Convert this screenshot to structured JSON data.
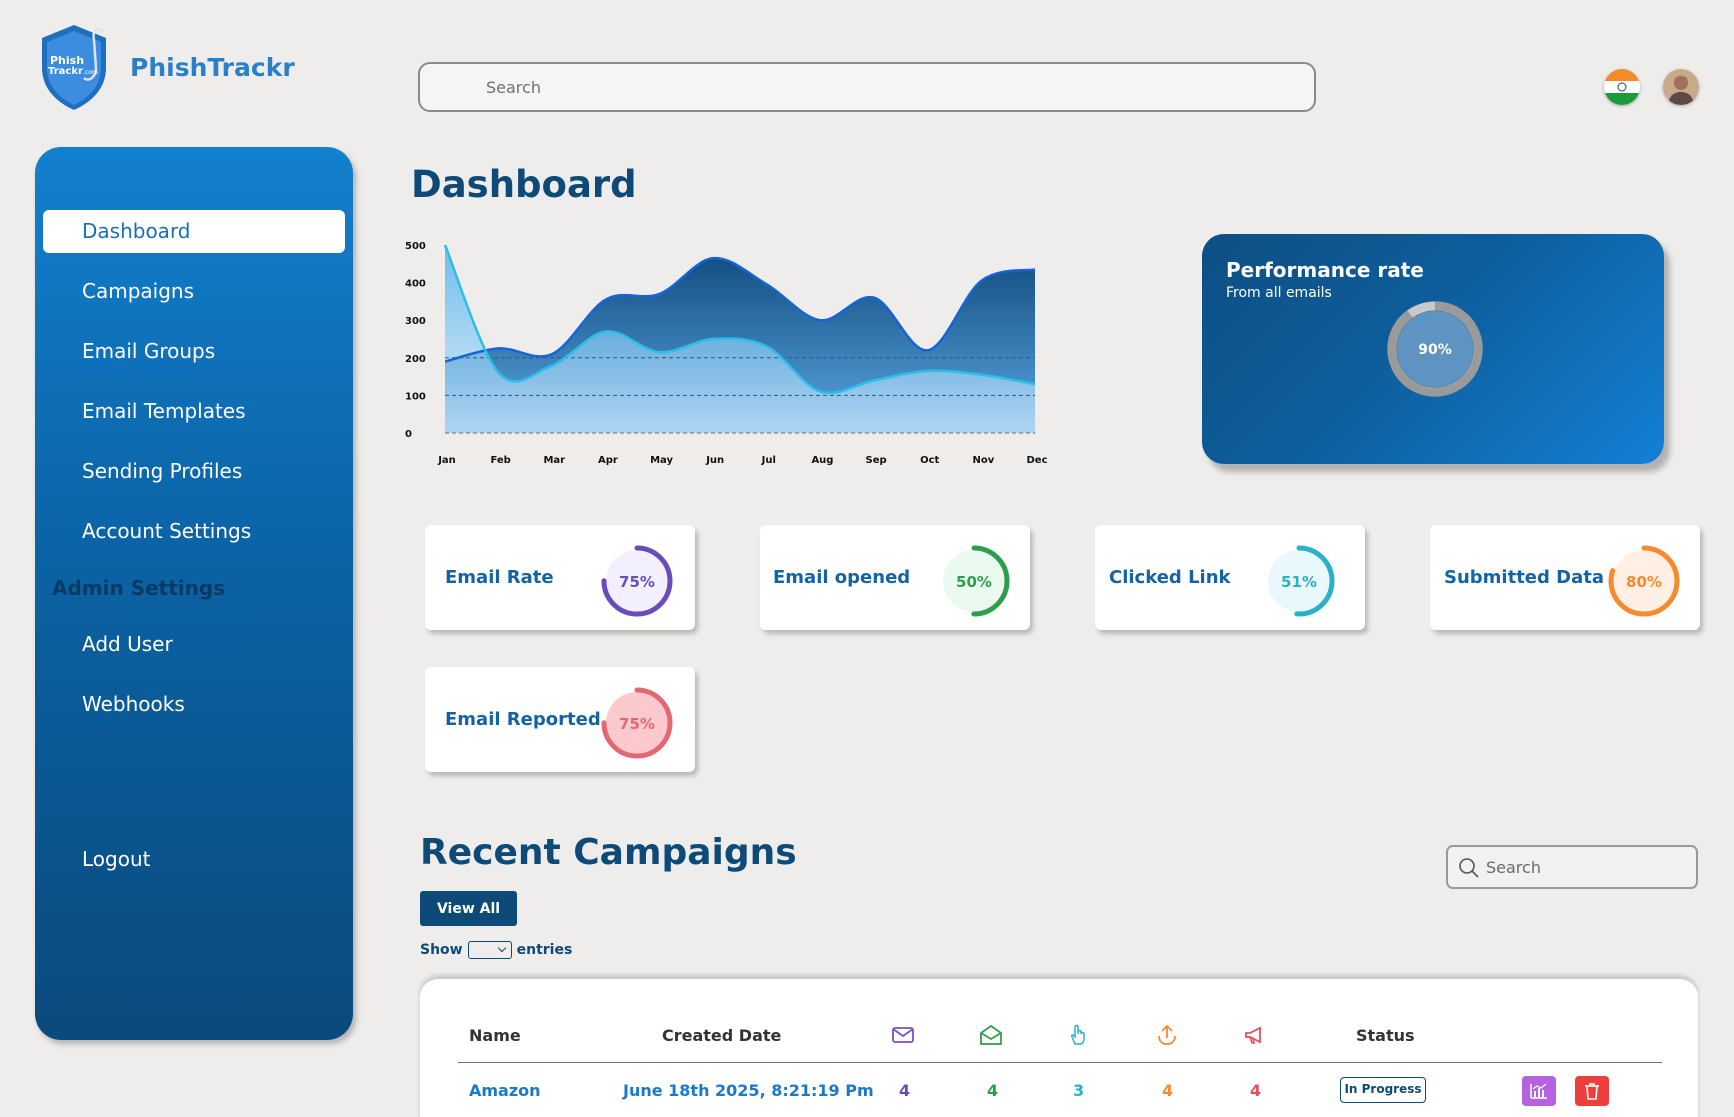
{
  "brand": {
    "name": "PhishTrackr",
    "logo_text_line1": "Phish",
    "logo_text_line2": "Trackr",
    "logo_suffix": ".com"
  },
  "header": {
    "search_placeholder": "Search",
    "flag_icon": "india-flag-icon",
    "avatar_icon": "user-avatar"
  },
  "sidebar": {
    "items": [
      {
        "label": "Dashboard",
        "active": true
      },
      {
        "label": "Campaigns"
      },
      {
        "label": "Email Groups"
      },
      {
        "label": "Email Templates"
      },
      {
        "label": "Sending Profiles"
      },
      {
        "label": "Account Settings"
      }
    ],
    "admin_heading": "Admin Settings",
    "admin_items": [
      {
        "label": "Add User"
      },
      {
        "label": "Webhooks"
      }
    ],
    "logout_label": "Logout"
  },
  "page": {
    "title": "Dashboard"
  },
  "chart_data": {
    "type": "area",
    "categories": [
      "Jan",
      "Feb",
      "Mar",
      "Apr",
      "May",
      "Jun",
      "Jul",
      "Aug",
      "Sep",
      "Oct",
      "Nov",
      "Dec"
    ],
    "yticks": [
      "0",
      "100",
      "200",
      "300",
      "400",
      "500"
    ],
    "ylim": [
      0,
      500
    ],
    "series": [
      {
        "values": [
          190,
          225,
          210,
          355,
          370,
          465,
          395,
          300,
          360,
          220,
          405,
          435
        ],
        "color": "#1565d8"
      },
      {
        "values": [
          500,
          160,
          180,
          270,
          215,
          250,
          230,
          110,
          140,
          165,
          155,
          130
        ],
        "color": "#2bbfe8"
      }
    ],
    "grid": "dashed at 100 and 200"
  },
  "performance": {
    "title": "Performance rate",
    "subtitle": "From all emails",
    "value": 90,
    "value_label": "90%"
  },
  "stats": [
    {
      "label": "Email Rate",
      "value": 75,
      "value_label": "75%",
      "color": "#6a4cb8",
      "bg": "#f3efff"
    },
    {
      "label": "Email opened",
      "value": 50,
      "value_label": "50%",
      "color": "#2e9e4a",
      "bg": "#eafaf0"
    },
    {
      "label": "Clicked Link",
      "value": 51,
      "value_label": "51%",
      "color": "#2bb0c9",
      "bg": "#e8f8fb"
    },
    {
      "label": "Submitted Data",
      "value": 80,
      "value_label": "80%",
      "color": "#f7892f",
      "bg": "#fff0e3"
    },
    {
      "label": "Email Reported",
      "value": 75,
      "value_label": "75%",
      "color": "#e36873",
      "bg": "#fcc9cd"
    }
  ],
  "recent": {
    "title": "Recent Campaigns",
    "view_all_label": "View All",
    "show_label": "Show",
    "entries_label": "entries",
    "search_placeholder": "Search",
    "columns": {
      "name": "Name",
      "created": "Created Date",
      "sent_icon": "mail-icon",
      "opened_icon": "mail-open-icon",
      "clicked_icon": "pointer-hand-icon",
      "submitted_icon": "upload-icon",
      "reported_icon": "megaphone-icon",
      "status": "Status"
    },
    "rows": [
      {
        "name": "Amazon",
        "created": "June 18th 2025, 8:21:19 Pm",
        "sent": "4",
        "opened": "4",
        "clicked": "3",
        "submitted": "4",
        "reported": "4",
        "status": "In Progress"
      }
    ]
  }
}
